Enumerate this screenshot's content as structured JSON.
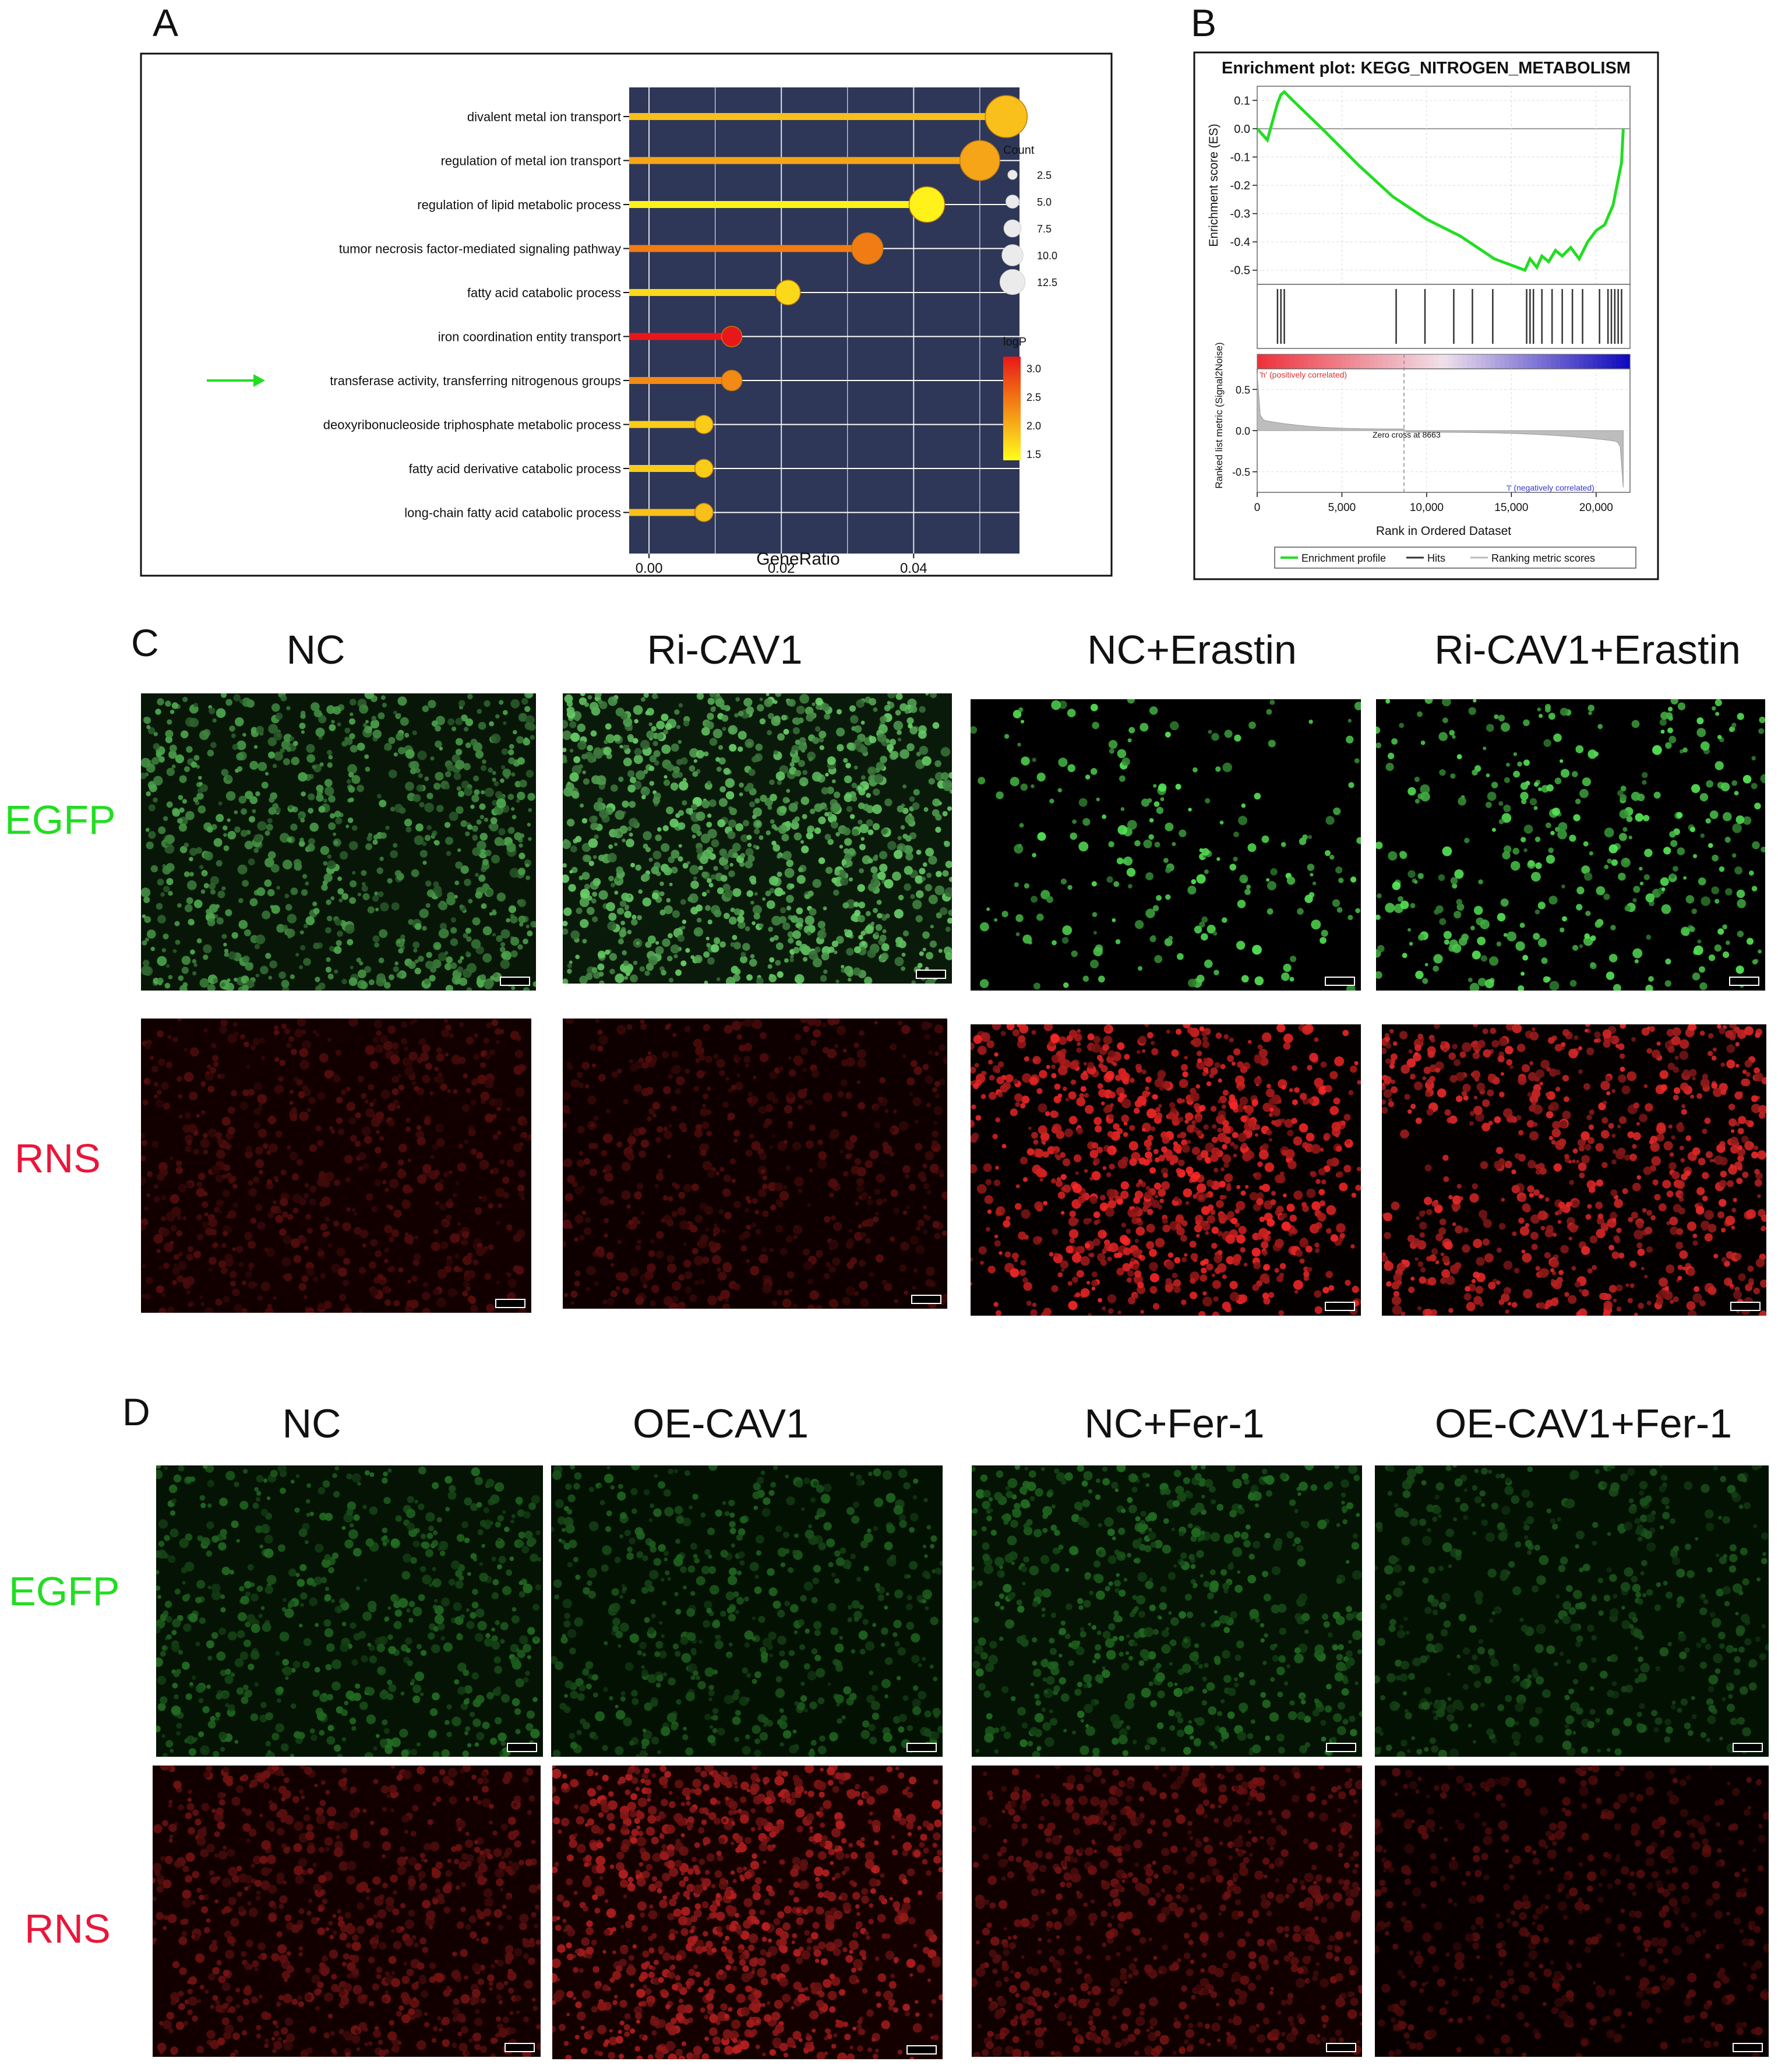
{
  "panel_labels": {
    "a": "A",
    "b": "B",
    "c": "C",
    "d": "D"
  },
  "lollipop": {
    "terms": [
      "divalent metal ion transport",
      "regulation of metal ion transport",
      "regulation of lipid metabolic process",
      "tumor necrosis factor-mediated signaling pathway",
      "fatty acid catabolic process",
      "iron coordination entity transport",
      "transferase activity, transferring nitrogenous groups",
      "deoxyribonucleoside triphosphate metabolic process",
      "fatty acid derivative catabolic process",
      "long-chain fatty acid catabolic process"
    ],
    "x_ticks": [
      "0.00",
      "0.02",
      "0.04"
    ],
    "xlabel": "GeneRatio",
    "count_legend": {
      "title": "Count",
      "values": [
        "2.5",
        "5.0",
        "7.5",
        "10.0",
        "12.5"
      ]
    },
    "logp_legend": {
      "title": "logP",
      "values": [
        "3.0",
        "2.5",
        "2.0",
        "1.5"
      ]
    },
    "arrow_color": "#22dd22",
    "panel_bg": "#2e3757"
  },
  "gsea": {
    "title": "Enrichment plot: KEGG_NITROGEN_METABOLISM",
    "es_ylabel": "Enrichment score (ES)",
    "es_ticks": [
      "0.1",
      "0.0",
      "-0.1",
      "-0.2",
      "-0.3",
      "-0.4",
      "-0.5"
    ],
    "rank_ylabel": "Ranked list metric (Signal2Noise)",
    "rank_ticks": [
      "0.5",
      "0.0",
      "-0.5"
    ],
    "x_ticks": [
      "0",
      "5,000",
      "10,000",
      "15,000",
      "20,000"
    ],
    "xlabel": "Rank in Ordered Dataset",
    "pos_label": "'h' (positively correlated)",
    "neg_label": "'l' (negatively correlated)",
    "zero_cross": "Zero cross at 8663",
    "legend": [
      "Enrichment profile",
      "Hits",
      "Ranking metric scores"
    ],
    "line_color": "#22dd22"
  },
  "panel_c": {
    "columns": [
      "NC",
      "Ri-CAV1",
      "NC+Erastin",
      "Ri-CAV1+Erastin"
    ],
    "rows": [
      "EGFP",
      "RNS"
    ]
  },
  "panel_d": {
    "columns": [
      "NC",
      "OE-CAV1",
      "NC+Fer-1",
      "OE-CAV1+Fer-1"
    ],
    "rows": [
      "EGFP",
      "RNS"
    ]
  },
  "colors": {
    "egfp_label": "#22dd22",
    "rns_label": "#e8173a"
  },
  "chart_data": [
    {
      "type": "scatter",
      "subtype": "lollipop",
      "categories": [
        "divalent metal ion transport",
        "regulation of metal ion transport",
        "regulation of lipid metabolic process",
        "tumor necrosis factor-mediated signaling pathway",
        "fatty acid catabolic process",
        "iron coordination entity transport",
        "transferase activity, transferring nitrogenous groups",
        "deoxyribonucleoside triphosphate metabolic process",
        "fatty acid derivative catabolic process",
        "long-chain fatty acid catabolic process"
      ],
      "gene_ratio": [
        0.054,
        0.05,
        0.042,
        0.033,
        0.021,
        0.0125,
        0.0125,
        0.0083,
        0.0083,
        0.0083
      ],
      "count": [
        13,
        12,
        10,
        8,
        5,
        3,
        3,
        2,
        2,
        2
      ],
      "logP": [
        1.9,
        2.1,
        1.5,
        2.4,
        1.7,
        3.1,
        2.3,
        1.8,
        1.8,
        1.9
      ],
      "xlabel": "GeneRatio",
      "xlim": [
        -0.003,
        0.056
      ],
      "x_ticks": [
        0.0,
        0.02,
        0.04
      ],
      "legend_placement": "right",
      "grid": true
    },
    {
      "type": "line",
      "title": "Enrichment plot: KEGG_NITROGEN_METABOLISM",
      "x": [
        0,
        600,
        1200,
        1400,
        1600,
        2100,
        4000,
        6000,
        8000,
        10000,
        12000,
        14000,
        15800,
        16100,
        16500,
        16800,
        17200,
        17600,
        18000,
        18500,
        19000,
        19500,
        20000,
        20500,
        21000,
        21300,
        21500,
        21600
      ],
      "y": [
        0.0,
        -0.04,
        0.09,
        0.12,
        0.13,
        0.1,
        -0.01,
        -0.13,
        -0.24,
        -0.32,
        -0.38,
        -0.46,
        -0.5,
        -0.46,
        -0.49,
        -0.45,
        -0.47,
        -0.43,
        -0.45,
        -0.42,
        -0.46,
        -0.4,
        -0.36,
        -0.34,
        -0.27,
        -0.18,
        -0.12,
        0.0
      ],
      "hits_x": [
        1200,
        1400,
        1600,
        8200,
        9900,
        11600,
        12700,
        13900,
        15900,
        16100,
        16300,
        16800,
        17400,
        18000,
        18600,
        19200,
        20200,
        20700,
        20900,
        21100,
        21300,
        21500
      ],
      "ylabel": "Enrichment score (ES)",
      "xlabel": "Rank in Ordered Dataset",
      "xlim": [
        0,
        22000
      ],
      "ylim": [
        -0.55,
        0.15
      ],
      "zero_cross": 8663,
      "grid": true,
      "legend_placement": "bottom"
    }
  ]
}
